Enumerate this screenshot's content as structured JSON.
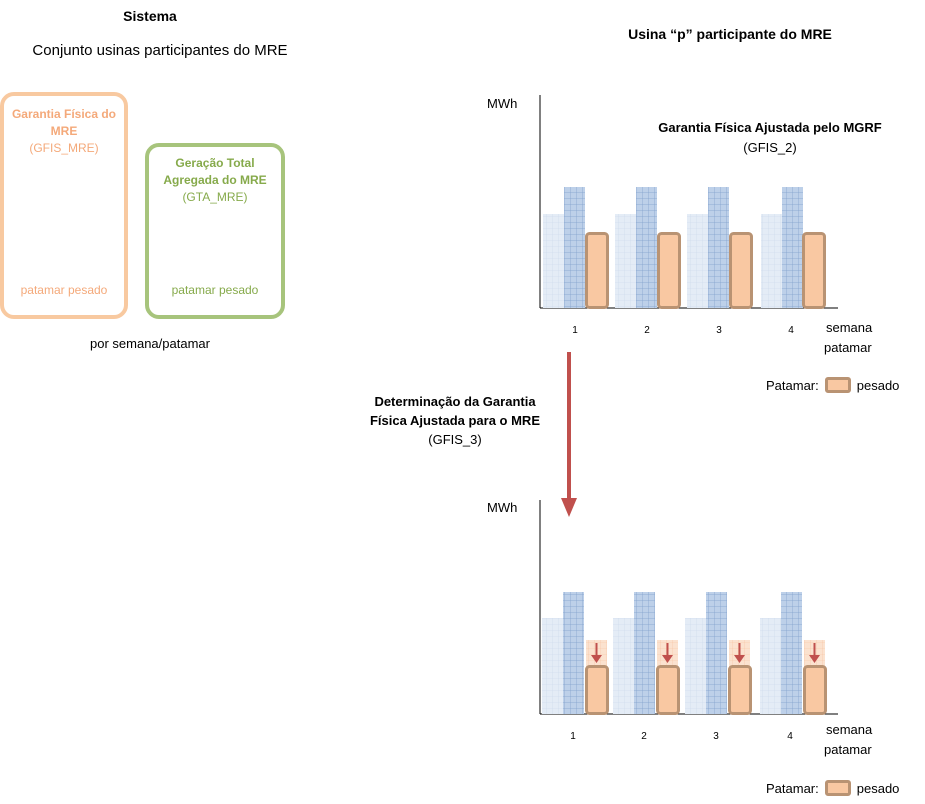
{
  "left": {
    "title": "Sistema",
    "subtitle": "Conjunto usinas participantes do MRE",
    "gfis_box": {
      "line1": "Garantia Física do",
      "line2": "MRE",
      "code": "(GFIS_MRE)",
      "footer": "patamar pesado"
    },
    "gta_box": {
      "line1": "Geração Total",
      "line2": "Agregada do MRE",
      "code": "(GTA_MRE)",
      "footer": "patamar pesado"
    },
    "note": "por semana/patamar"
  },
  "right": {
    "title": "Usina “p” participante do MRE",
    "top_chart": {
      "y_label": "MWh",
      "heading": "Garantia Física Ajustada pelo MGRF",
      "code": "(GFIS_2)",
      "weeks": [
        "1",
        "2",
        "3",
        "4"
      ],
      "x_label_1": "semana",
      "x_label_2": "patamar",
      "legend_label": "Patamar:",
      "legend_item": "pesado"
    },
    "step": {
      "line1": "Determinação da Garantia",
      "line2": "Física Ajustada para o MRE",
      "code": "(GFIS_3)"
    },
    "bottom_chart": {
      "y_label": "MWh",
      "weeks": [
        "1",
        "2",
        "3",
        "4"
      ],
      "x_label_1": "semana",
      "x_label_2": "patamar",
      "legend_label": "Patamar:",
      "legend_item": "pesado"
    }
  },
  "colors": {
    "gfis_box": "#f8c9a0",
    "gta_box": "#a7c47c",
    "light_blue": "#dce6f2",
    "blue": "#b8cde6",
    "orange_fill": "#f9c8a2",
    "orange_border": "#b99373",
    "arrow": "#c0504d"
  }
}
